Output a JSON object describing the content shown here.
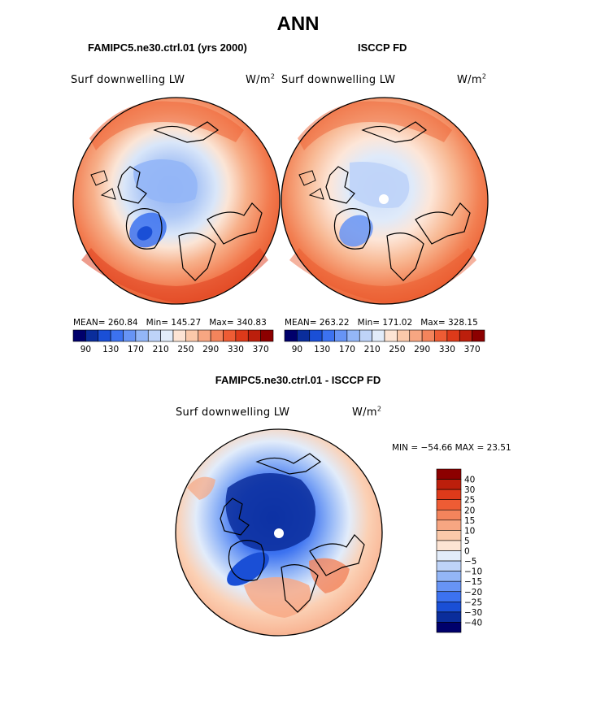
{
  "title": "ANN",
  "panels": [
    {
      "subtitle": "FAMIPC5.ne30.ctrl.01 (yrs 2000)",
      "var_label": "Surf downwelling LW",
      "units_base": "W/m",
      "units_exp": "2",
      "stats": {
        "mean_label": "MEAN=",
        "mean": "260.84",
        "min_label": "Min=",
        "min": "145.27",
        "max_label": "Max=",
        "max": "340.83"
      }
    },
    {
      "subtitle": "ISCCP FD",
      "var_label": "Surf downwelling LW",
      "units_base": "W/m",
      "units_exp": "2",
      "stats": {
        "mean_label": "MEAN=",
        "mean": "263.22",
        "min_label": "Min=",
        "min": "171.02",
        "max_label": "Max=",
        "max": "328.15"
      }
    }
  ],
  "diff": {
    "subtitle": "FAMIPC5.ne30.ctrl.01 - ISCCP FD",
    "var_label": "Surf downwelling LW",
    "units_base": "W/m",
    "units_exp": "2",
    "minmax": "MIN = −54.66 MAX =  23.51"
  },
  "colorbar_abs": {
    "colors": [
      "#00006b",
      "#0a2d9b",
      "#1a4fd6",
      "#3c72f0",
      "#6794f5",
      "#93b6f7",
      "#bed3f8",
      "#e2ecfa",
      "#fde4d4",
      "#fbc9aa",
      "#f7a682",
      "#f3845c",
      "#ee5c34",
      "#dd3a1a",
      "#bc1f0c",
      "#8c0000"
    ],
    "ticks": [
      "90",
      "130",
      "170",
      "210",
      "250",
      "290",
      "330",
      "370"
    ]
  },
  "colorbar_diff": {
    "colors": [
      "#00006b",
      "#0a2d9b",
      "#1a4fd6",
      "#3c72f0",
      "#6794f5",
      "#93b6f7",
      "#bed3f8",
      "#e2ecfa",
      "#fde4d4",
      "#fbc9aa",
      "#f7a682",
      "#f3845c",
      "#ee5c34",
      "#dd3a1a",
      "#bc1f0c",
      "#8c0000"
    ],
    "ticks": [
      "40",
      "30",
      "25",
      "20",
      "15",
      "10",
      "5",
      "0",
      "−5",
      "−10",
      "−15",
      "−20",
      "−25",
      "−30",
      "−40"
    ]
  }
}
